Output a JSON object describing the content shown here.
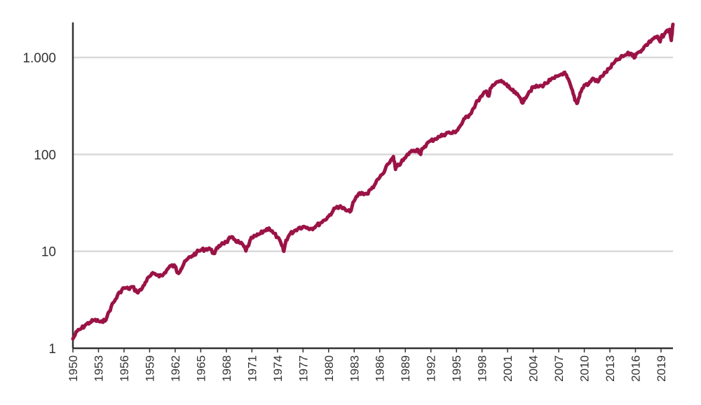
{
  "chart_data": {
    "type": "line",
    "title": "",
    "xlabel": "",
    "ylabel": "",
    "y_scale": "log",
    "ylim": [
      1,
      2300
    ],
    "xlim": [
      1950,
      2020.4
    ],
    "grid": "horizontal",
    "legend": "none",
    "colors": {
      "line": "#9b1346",
      "grid": "#d9d9d9",
      "axis": "#333333"
    },
    "y_ticks": [
      {
        "value": 1,
        "label": "1"
      },
      {
        "value": 10,
        "label": "10"
      },
      {
        "value": 100,
        "label": "100"
      },
      {
        "value": 1000,
        "label": "1.000"
      }
    ],
    "x_ticks": [
      "1950",
      "1953",
      "1956",
      "1959",
      "1962",
      "1965",
      "1968",
      "1971",
      "1974",
      "1977",
      "1980",
      "1983",
      "1986",
      "1989",
      "1992",
      "1995",
      "1998",
      "2001",
      "2004",
      "2007",
      "2010",
      "2013",
      "2016",
      "2019"
    ],
    "series": [
      {
        "name": "",
        "points": [
          [
            1950.0,
            1.25
          ],
          [
            1950.5,
            1.5
          ],
          [
            1951.0,
            1.6
          ],
          [
            1951.5,
            1.75
          ],
          [
            1952.0,
            1.85
          ],
          [
            1952.5,
            1.95
          ],
          [
            1953.0,
            1.9
          ],
          [
            1953.5,
            1.85
          ],
          [
            1954.0,
            2.1
          ],
          [
            1954.5,
            2.7
          ],
          [
            1955.0,
            3.2
          ],
          [
            1955.5,
            3.8
          ],
          [
            1956.0,
            4.2
          ],
          [
            1956.5,
            4.1
          ],
          [
            1957.0,
            4.3
          ],
          [
            1957.5,
            3.8
          ],
          [
            1958.0,
            4.0
          ],
          [
            1958.5,
            4.8
          ],
          [
            1959.0,
            5.5
          ],
          [
            1959.5,
            5.9
          ],
          [
            1960.0,
            5.7
          ],
          [
            1960.5,
            5.6
          ],
          [
            1961.0,
            6.4
          ],
          [
            1961.5,
            7.1
          ],
          [
            1962.0,
            7.0
          ],
          [
            1962.3,
            6.0
          ],
          [
            1962.7,
            6.6
          ],
          [
            1963.0,
            7.4
          ],
          [
            1963.5,
            8.4
          ],
          [
            1964.0,
            9.0
          ],
          [
            1964.5,
            9.7
          ],
          [
            1965.0,
            10.3
          ],
          [
            1965.5,
            10.5
          ],
          [
            1966.0,
            10.8
          ],
          [
            1966.5,
            9.5
          ],
          [
            1967.0,
            10.8
          ],
          [
            1967.5,
            12.2
          ],
          [
            1968.0,
            12.4
          ],
          [
            1968.5,
            13.8
          ],
          [
            1969.0,
            13.2
          ],
          [
            1969.5,
            12.3
          ],
          [
            1970.0,
            11.5
          ],
          [
            1970.3,
            10.1
          ],
          [
            1970.7,
            12.2
          ],
          [
            1971.0,
            13.8
          ],
          [
            1971.5,
            14.4
          ],
          [
            1972.0,
            15.2
          ],
          [
            1972.5,
            16.4
          ],
          [
            1973.0,
            17.4
          ],
          [
            1973.5,
            15.5
          ],
          [
            1974.0,
            14.0
          ],
          [
            1974.5,
            11.5
          ],
          [
            1974.75,
            10.0
          ],
          [
            1975.0,
            13.0
          ],
          [
            1975.5,
            15.2
          ],
          [
            1976.0,
            16.3
          ],
          [
            1976.5,
            17.5
          ],
          [
            1977.0,
            18.0
          ],
          [
            1977.5,
            17.6
          ],
          [
            1978.0,
            17.2
          ],
          [
            1978.5,
            18.2
          ],
          [
            1979.0,
            19.5
          ],
          [
            1979.5,
            21.0
          ],
          [
            1980.0,
            23.0
          ],
          [
            1980.5,
            26.0
          ],
          [
            1981.0,
            29.0
          ],
          [
            1981.5,
            28.5
          ],
          [
            1982.0,
            26.5
          ],
          [
            1982.5,
            25.5
          ],
          [
            1983.0,
            33.0
          ],
          [
            1983.5,
            39.0
          ],
          [
            1984.0,
            40.0
          ],
          [
            1984.5,
            39.0
          ],
          [
            1985.0,
            44.0
          ],
          [
            1985.5,
            50.0
          ],
          [
            1986.0,
            58.0
          ],
          [
            1986.5,
            65.0
          ],
          [
            1987.0,
            80.0
          ],
          [
            1987.6,
            95.0
          ],
          [
            1987.85,
            70.0
          ],
          [
            1988.0,
            75.0
          ],
          [
            1988.5,
            82.0
          ],
          [
            1989.0,
            92.0
          ],
          [
            1989.5,
            105.0
          ],
          [
            1990.0,
            110.0
          ],
          [
            1990.5,
            112.0
          ],
          [
            1990.8,
            100.0
          ],
          [
            1991.0,
            115.0
          ],
          [
            1991.5,
            128.0
          ],
          [
            1992.0,
            138.0
          ],
          [
            1992.5,
            145.0
          ],
          [
            1993.0,
            152.0
          ],
          [
            1993.5,
            160.0
          ],
          [
            1994.0,
            168.0
          ],
          [
            1994.5,
            165.0
          ],
          [
            1995.0,
            175.0
          ],
          [
            1995.5,
            200.0
          ],
          [
            1996.0,
            235.0
          ],
          [
            1996.5,
            255.0
          ],
          [
            1997.0,
            300.0
          ],
          [
            1997.5,
            360.0
          ],
          [
            1998.0,
            400.0
          ],
          [
            1998.5,
            450.0
          ],
          [
            1998.8,
            400.0
          ],
          [
            1999.0,
            480.0
          ],
          [
            1999.5,
            530.0
          ],
          [
            2000.0,
            570.0
          ],
          [
            2000.5,
            560.0
          ],
          [
            2001.0,
            500.0
          ],
          [
            2001.5,
            460.0
          ],
          [
            2002.0,
            420.0
          ],
          [
            2002.5,
            380.0
          ],
          [
            2002.8,
            340.0
          ],
          [
            2003.0,
            380.0
          ],
          [
            2003.5,
            440.0
          ],
          [
            2004.0,
            490.0
          ],
          [
            2004.5,
            500.0
          ],
          [
            2005.0,
            510.0
          ],
          [
            2005.5,
            540.0
          ],
          [
            2006.0,
            580.0
          ],
          [
            2006.5,
            610.0
          ],
          [
            2007.0,
            650.0
          ],
          [
            2007.6,
            700.0
          ],
          [
            2008.0,
            620.0
          ],
          [
            2008.5,
            480.0
          ],
          [
            2008.9,
            360.0
          ],
          [
            2009.2,
            340.0
          ],
          [
            2009.5,
            430.0
          ],
          [
            2010.0,
            520.0
          ],
          [
            2010.5,
            530.0
          ],
          [
            2011.0,
            610.0
          ],
          [
            2011.6,
            560.0
          ],
          [
            2012.0,
            640.0
          ],
          [
            2012.5,
            700.0
          ],
          [
            2013.0,
            780.0
          ],
          [
            2013.5,
            880.0
          ],
          [
            2014.0,
            960.0
          ],
          [
            2014.5,
            1020.0
          ],
          [
            2015.0,
            1080.0
          ],
          [
            2015.5,
            1100.0
          ],
          [
            2015.8,
            1020.0
          ],
          [
            2016.0,
            1050.0
          ],
          [
            2016.5,
            1150.0
          ],
          [
            2017.0,
            1280.0
          ],
          [
            2017.5,
            1400.0
          ],
          [
            2018.0,
            1550.0
          ],
          [
            2018.5,
            1650.0
          ],
          [
            2018.9,
            1450.0
          ],
          [
            2019.0,
            1600.0
          ],
          [
            2019.5,
            1800.0
          ],
          [
            2020.0,
            1950.0
          ],
          [
            2020.2,
            1500.0
          ],
          [
            2020.4,
            2200.0
          ]
        ]
      }
    ]
  }
}
